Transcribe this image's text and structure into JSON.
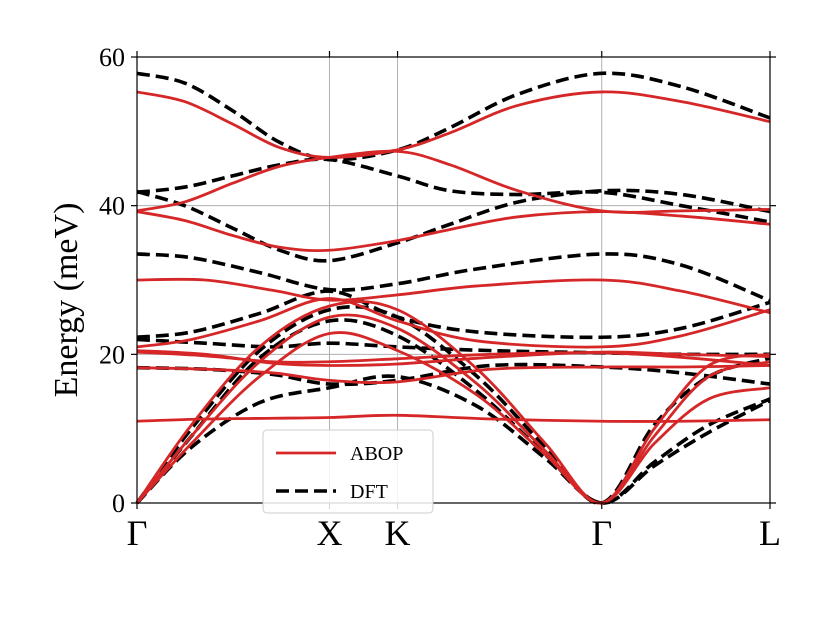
{
  "chart_data": {
    "type": "line",
    "title": "",
    "xlabel": "",
    "ylabel": "Energy (meV)",
    "ylim": [
      0,
      60
    ],
    "yticks": [
      0,
      20,
      40,
      60
    ],
    "xlim": [
      0,
      4.65
    ],
    "high_symmetry_points": [
      {
        "label": "Γ",
        "x": 0
      },
      {
        "label": "X",
        "x": 1.414
      },
      {
        "label": "K",
        "x": 1.914
      },
      {
        "label": "Γ",
        "x": 3.414
      },
      {
        "label": "L",
        "x": 4.65
      }
    ],
    "grid": true,
    "legend": {
      "position": "lower-left",
      "entries": [
        "ABOP",
        "DFT"
      ]
    },
    "colors": {
      "ABOP": "#d62728",
      "DFT": "#000000"
    },
    "series": [
      {
        "name": "ABOP",
        "style": "solid",
        "branches": [
          [
            [
              0,
              55.3
            ],
            [
              0.35,
              54.0
            ],
            [
              0.7,
              51.0
            ],
            [
              1.05,
              47.8
            ],
            [
              1.414,
              46.5
            ],
            [
              1.914,
              47.5
            ],
            [
              2.3,
              49.8
            ],
            [
              2.8,
              53.5
            ],
            [
              3.414,
              55.3
            ],
            [
              4.0,
              54.0
            ],
            [
              4.65,
              51.3
            ]
          ],
          [
            [
              0,
              39.3
            ],
            [
              0.35,
              40.5
            ],
            [
              0.7,
              43.0
            ],
            [
              1.05,
              45.3
            ],
            [
              1.414,
              46.5
            ],
            [
              1.914,
              47.3
            ],
            [
              2.3,
              45.5
            ],
            [
              2.8,
              42.0
            ],
            [
              3.414,
              39.3
            ],
            [
              4.0,
              39.3
            ],
            [
              4.65,
              39.5
            ]
          ],
          [
            [
              0,
              39.2
            ],
            [
              0.35,
              38.0
            ],
            [
              0.7,
              36.0
            ],
            [
              1.05,
              34.4
            ],
            [
              1.414,
              34.0
            ],
            [
              1.914,
              35.3
            ],
            [
              2.3,
              36.8
            ],
            [
              2.8,
              38.5
            ],
            [
              3.414,
              39.2
            ],
            [
              4.0,
              38.6
            ],
            [
              4.65,
              37.5
            ]
          ],
          [
            [
              0,
              30.0
            ],
            [
              0.5,
              30.0
            ],
            [
              1.0,
              28.6
            ],
            [
              1.414,
              27.3
            ],
            [
              1.914,
              28.0
            ],
            [
              2.5,
              29.2
            ],
            [
              3.414,
              30.0
            ],
            [
              4.0,
              28.5
            ],
            [
              4.65,
              25.6
            ]
          ],
          [
            [
              0,
              21.0
            ],
            [
              0.4,
              22.0
            ],
            [
              0.9,
              24.5
            ],
            [
              1.414,
              27.5
            ],
            [
              1.914,
              24.5
            ],
            [
              2.5,
              21.8
            ],
            [
              3.414,
              21.0
            ],
            [
              4.0,
              22.5
            ],
            [
              4.65,
              26.0
            ]
          ],
          [
            [
              0,
              20.5
            ],
            [
              0.5,
              20.0
            ],
            [
              1.0,
              18.8
            ],
            [
              1.414,
              18.5
            ],
            [
              1.914,
              18.7
            ],
            [
              2.6,
              19.6
            ],
            [
              3.414,
              20.3
            ],
            [
              4.0,
              20.0
            ],
            [
              4.65,
              19.7
            ]
          ],
          [
            [
              0,
              20.3
            ],
            [
              0.5,
              19.8
            ],
            [
              1.0,
              19.0
            ],
            [
              1.414,
              19.0
            ],
            [
              1.914,
              19.4
            ],
            [
              2.6,
              20.0
            ],
            [
              3.414,
              20.2
            ],
            [
              4.0,
              19.6
            ],
            [
              4.65,
              18.5
            ]
          ],
          [
            [
              0,
              11.0
            ],
            [
              0.5,
              11.3
            ],
            [
              1.0,
              11.4
            ],
            [
              1.414,
              11.5
            ],
            [
              1.914,
              11.8
            ],
            [
              2.6,
              11.3
            ],
            [
              3.414,
              11.0
            ],
            [
              4.0,
              11.0
            ],
            [
              4.65,
              11.2
            ]
          ],
          [
            [
              0,
              0
            ],
            [
              0.4,
              8.0
            ],
            [
              0.9,
              17.0
            ],
            [
              1.414,
              22.8
            ],
            [
              1.914,
              20.5
            ],
            [
              2.5,
              14.5
            ],
            [
              3.0,
              6.5
            ],
            [
              3.414,
              0
            ],
            [
              3.8,
              8.0
            ],
            [
              4.2,
              14.0
            ],
            [
              4.65,
              15.5
            ]
          ],
          [
            [
              0,
              0
            ],
            [
              0.4,
              9.0
            ],
            [
              0.9,
              19.0
            ],
            [
              1.414,
              25.0
            ],
            [
              1.914,
              23.5
            ],
            [
              2.5,
              16.0
            ],
            [
              3.0,
              7.0
            ],
            [
              3.414,
              0
            ],
            [
              3.8,
              9.0
            ],
            [
              4.2,
              17.0
            ],
            [
              4.65,
              19.0
            ]
          ],
          [
            [
              0,
              0
            ],
            [
              0.4,
              10.5
            ],
            [
              0.9,
              21.0
            ],
            [
              1.414,
              26.5
            ],
            [
              1.914,
              26.0
            ],
            [
              2.5,
              18.0
            ],
            [
              3.0,
              8.0
            ],
            [
              3.414,
              0
            ],
            [
              3.8,
              10.0
            ],
            [
              4.2,
              18.5
            ],
            [
              4.65,
              20.0
            ]
          ],
          [
            [
              0,
              18.2
            ],
            [
              0.5,
              18.0
            ],
            [
              1.0,
              17.5
            ],
            [
              1.414,
              16.5
            ],
            [
              1.914,
              16.3
            ],
            [
              2.6,
              18.0
            ],
            [
              3.414,
              18.3
            ],
            [
              4.0,
              18.3
            ],
            [
              4.65,
              18.5
            ]
          ]
        ]
      },
      {
        "name": "DFT",
        "style": "dashed",
        "branches": [
          [
            [
              0,
              57.8
            ],
            [
              0.35,
              56.5
            ],
            [
              0.7,
              52.8
            ],
            [
              1.05,
              48.5
            ],
            [
              1.414,
              46.2
            ],
            [
              1.914,
              47.5
            ],
            [
              2.3,
              50.5
            ],
            [
              2.8,
              55.0
            ],
            [
              3.414,
              57.8
            ],
            [
              4.0,
              56.0
            ],
            [
              4.65,
              51.8
            ]
          ],
          [
            [
              0,
              41.8
            ],
            [
              0.35,
              42.5
            ],
            [
              0.7,
              44.0
            ],
            [
              1.05,
              45.5
            ],
            [
              1.414,
              46.2
            ],
            [
              1.914,
              44.0
            ],
            [
              2.3,
              42.0
            ],
            [
              2.8,
              41.5
            ],
            [
              3.414,
              41.8
            ],
            [
              4.0,
              40.0
            ],
            [
              4.65,
              37.8
            ]
          ],
          [
            [
              0,
              41.9
            ],
            [
              0.35,
              40.0
            ],
            [
              0.7,
              37.0
            ],
            [
              1.05,
              34.0
            ],
            [
              1.414,
              32.6
            ],
            [
              1.914,
              35.0
            ],
            [
              2.3,
              37.5
            ],
            [
              2.8,
              40.5
            ],
            [
              3.414,
              42.0
            ],
            [
              4.0,
              41.5
            ],
            [
              4.65,
              39.2
            ]
          ],
          [
            [
              0,
              33.5
            ],
            [
              0.4,
              33.0
            ],
            [
              0.9,
              31.0
            ],
            [
              1.414,
              28.7
            ],
            [
              1.914,
              29.5
            ],
            [
              2.5,
              31.5
            ],
            [
              3.414,
              33.5
            ],
            [
              4.0,
              32.0
            ],
            [
              4.65,
              27.2
            ]
          ],
          [
            [
              0,
              22.3
            ],
            [
              0.4,
              23.0
            ],
            [
              0.9,
              25.5
            ],
            [
              1.414,
              28.5
            ],
            [
              1.914,
              25.0
            ],
            [
              2.5,
              23.0
            ],
            [
              3.414,
              22.3
            ],
            [
              4.0,
              23.5
            ],
            [
              4.65,
              27.0
            ]
          ],
          [
            [
              0,
              22.0
            ],
            [
              0.5,
              21.5
            ],
            [
              1.0,
              21.0
            ],
            [
              1.414,
              21.5
            ],
            [
              1.914,
              21.0
            ],
            [
              2.6,
              20.5
            ],
            [
              3.414,
              20.2
            ],
            [
              4.0,
              20.0
            ],
            [
              4.65,
              20.0
            ]
          ],
          [
            [
              0,
              18.2
            ],
            [
              0.5,
              18.0
            ],
            [
              1.0,
              17.3
            ],
            [
              1.414,
              16.0
            ],
            [
              1.914,
              16.5
            ],
            [
              2.6,
              18.5
            ],
            [
              3.414,
              18.3
            ],
            [
              4.0,
              17.5
            ],
            [
              4.65,
              16.0
            ]
          ],
          [
            [
              0,
              0
            ],
            [
              0.4,
              7.5
            ],
            [
              0.9,
              13.5
            ],
            [
              1.414,
              15.5
            ],
            [
              1.914,
              17.0
            ],
            [
              2.5,
              13.0
            ],
            [
              3.0,
              6.0
            ],
            [
              3.414,
              0
            ],
            [
              3.8,
              5.0
            ],
            [
              4.2,
              9.5
            ],
            [
              4.65,
              13.8
            ]
          ],
          [
            [
              0,
              0
            ],
            [
              0.4,
              9.0
            ],
            [
              0.9,
              19.5
            ],
            [
              1.414,
              24.5
            ],
            [
              1.914,
              22.5
            ],
            [
              2.5,
              15.0
            ],
            [
              3.0,
              6.5
            ],
            [
              3.414,
              0
            ],
            [
              3.8,
              5.5
            ],
            [
              4.2,
              10.5
            ],
            [
              4.65,
              14.0
            ]
          ],
          [
            [
              0,
              0
            ],
            [
              0.4,
              10.0
            ],
            [
              0.9,
              20.5
            ],
            [
              1.414,
              26.0
            ],
            [
              1.914,
              25.0
            ],
            [
              2.5,
              17.0
            ],
            [
              3.0,
              7.5
            ],
            [
              3.414,
              0
            ],
            [
              3.8,
              10.5
            ],
            [
              4.2,
              17.0
            ],
            [
              4.65,
              19.5
            ]
          ]
        ]
      }
    ]
  }
}
